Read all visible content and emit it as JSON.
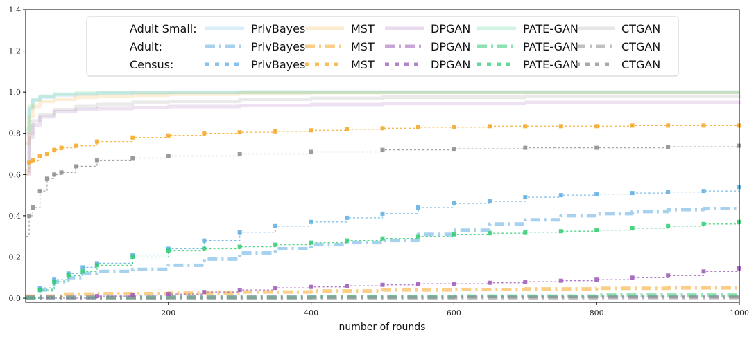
{
  "chart_data": {
    "type": "line",
    "title": "",
    "xlabel": "number of rounds",
    "ylabel": "",
    "xlim": [
      0,
      1000
    ],
    "ylim": [
      -0.02,
      1.4
    ],
    "x_ticks": [
      200,
      400,
      600,
      800,
      1000
    ],
    "y_ticks": [
      0.0,
      0.2,
      0.4,
      0.6,
      0.8,
      1.0,
      1.2,
      1.4
    ],
    "x_tick_labels": [
      "200",
      "400",
      "600",
      "800",
      "1000"
    ],
    "y_tick_labels": [
      "0.0",
      "0.2",
      "0.4",
      "0.6",
      "0.8",
      "1.0",
      "1.2",
      "1.4"
    ],
    "grid": false,
    "legend_position": "top-center",
    "legend_row_labels": [
      "Adult Small:",
      "Adult:",
      "Census:"
    ],
    "method_colors": {
      "PrivBayes": "#5dade2",
      "MST": "#f5a623",
      "DPGAN": "#9b59b6",
      "PATE-GAN": "#2ecc71",
      "CTGAN": "#8c8c8c"
    },
    "series": [
      {
        "dataset": "Adult Small",
        "name": "PrivBayes",
        "style": "solid",
        "x": [
          1,
          5,
          10,
          20,
          40,
          70,
          100,
          150,
          200,
          300,
          400,
          500,
          700,
          1000
        ],
        "values": [
          0.8,
          0.92,
          0.96,
          0.975,
          0.985,
          0.99,
          0.995,
          0.997,
          0.998,
          1.0,
          1.0,
          1.0,
          1.0,
          1.0
        ]
      },
      {
        "dataset": "Adult Small",
        "name": "MST",
        "style": "solid",
        "x": [
          1,
          5,
          10,
          20,
          40,
          70,
          100,
          150,
          200,
          300,
          400,
          500,
          700,
          1000
        ],
        "values": [
          0.75,
          0.88,
          0.93,
          0.955,
          0.965,
          0.975,
          0.98,
          0.985,
          0.99,
          0.995,
          0.997,
          0.998,
          0.999,
          1.0
        ]
      },
      {
        "dataset": "Adult Small",
        "name": "DPGAN",
        "style": "solid",
        "x": [
          1,
          5,
          10,
          20,
          40,
          70,
          100,
          150,
          200,
          300,
          400,
          500,
          700,
          1000
        ],
        "values": [
          0.6,
          0.78,
          0.84,
          0.88,
          0.905,
          0.915,
          0.92,
          0.925,
          0.93,
          0.935,
          0.94,
          0.945,
          0.95,
          0.955
        ]
      },
      {
        "dataset": "Adult Small",
        "name": "PATE-GAN",
        "style": "solid",
        "x": [
          1,
          5,
          10,
          20,
          40,
          70,
          100,
          150,
          200,
          300,
          400,
          500,
          700,
          1000
        ],
        "values": [
          0.82,
          0.93,
          0.965,
          0.98,
          0.99,
          0.995,
          0.997,
          0.999,
          1.0,
          1.0,
          1.0,
          1.0,
          1.0,
          1.0
        ]
      },
      {
        "dataset": "Adult Small",
        "name": "CTGAN",
        "style": "solid",
        "x": [
          1,
          5,
          10,
          20,
          40,
          70,
          100,
          150,
          200,
          300,
          400,
          500,
          700,
          1000
        ],
        "values": [
          0.62,
          0.8,
          0.86,
          0.89,
          0.915,
          0.93,
          0.94,
          0.95,
          0.955,
          0.965,
          0.97,
          0.975,
          0.98,
          0.985
        ]
      },
      {
        "dataset": "Adult",
        "name": "PrivBayes",
        "style": "dashdot",
        "x": [
          0,
          20,
          40,
          60,
          80,
          100,
          150,
          200,
          250,
          300,
          350,
          400,
          450,
          500,
          550,
          600,
          650,
          700,
          750,
          800,
          850,
          900,
          950,
          1000
        ],
        "values": [
          0.0,
          0.04,
          0.08,
          0.1,
          0.12,
          0.13,
          0.14,
          0.16,
          0.19,
          0.22,
          0.24,
          0.26,
          0.27,
          0.28,
          0.31,
          0.33,
          0.36,
          0.38,
          0.4,
          0.41,
          0.42,
          0.43,
          0.435,
          0.44
        ]
      },
      {
        "dataset": "Adult",
        "name": "MST",
        "style": "dashdot",
        "x": [
          0,
          50,
          100,
          200,
          300,
          400,
          500,
          600,
          700,
          800,
          900,
          1000
        ],
        "values": [
          0.01,
          0.02,
          0.022,
          0.025,
          0.03,
          0.035,
          0.04,
          0.042,
          0.045,
          0.048,
          0.05,
          0.052
        ]
      },
      {
        "dataset": "Adult",
        "name": "DPGAN",
        "style": "dashdot",
        "x": [
          0,
          200,
          400,
          600,
          800,
          1000
        ],
        "values": [
          0.005,
          0.006,
          0.007,
          0.008,
          0.008,
          0.009
        ]
      },
      {
        "dataset": "Adult",
        "name": "PATE-GAN",
        "style": "dashdot",
        "x": [
          0,
          200,
          400,
          600,
          800,
          1000
        ],
        "values": [
          0.003,
          0.004,
          0.006,
          0.01,
          0.015,
          0.018
        ]
      },
      {
        "dataset": "Adult",
        "name": "CTGAN",
        "style": "dashdot",
        "x": [
          0,
          200,
          400,
          600,
          800,
          1000
        ],
        "values": [
          0.0,
          0.0,
          0.001,
          0.002,
          0.003,
          0.004
        ]
      },
      {
        "dataset": "Census",
        "name": "PrivBayes",
        "style": "dotted",
        "x": [
          0,
          20,
          40,
          60,
          80,
          100,
          150,
          200,
          250,
          300,
          350,
          400,
          450,
          500,
          550,
          600,
          650,
          700,
          750,
          800,
          850,
          900,
          950,
          1000
        ],
        "values": [
          0.0,
          0.05,
          0.09,
          0.12,
          0.15,
          0.17,
          0.21,
          0.24,
          0.28,
          0.32,
          0.35,
          0.37,
          0.39,
          0.41,
          0.44,
          0.46,
          0.47,
          0.49,
          0.5,
          0.505,
          0.51,
          0.515,
          0.52,
          0.54
        ]
      },
      {
        "dataset": "Census",
        "name": "MST",
        "style": "dotted",
        "x": [
          1,
          5,
          10,
          20,
          30,
          40,
          50,
          70,
          100,
          150,
          200,
          250,
          300,
          350,
          400,
          450,
          500,
          550,
          600,
          650,
          700,
          750,
          800,
          850,
          900,
          950,
          1000
        ],
        "values": [
          0.6,
          0.66,
          0.67,
          0.69,
          0.7,
          0.72,
          0.73,
          0.74,
          0.76,
          0.78,
          0.79,
          0.8,
          0.805,
          0.81,
          0.815,
          0.82,
          0.825,
          0.83,
          0.83,
          0.835,
          0.835,
          0.835,
          0.835,
          0.838,
          0.838,
          0.838,
          0.838
        ]
      },
      {
        "dataset": "Census",
        "name": "DPGAN",
        "style": "dotted",
        "x": [
          0,
          100,
          150,
          200,
          250,
          300,
          350,
          400,
          450,
          500,
          550,
          600,
          650,
          700,
          750,
          800,
          850,
          900,
          950,
          1000
        ],
        "values": [
          0.0,
          0.01,
          0.015,
          0.02,
          0.03,
          0.04,
          0.05,
          0.055,
          0.06,
          0.065,
          0.07,
          0.07,
          0.075,
          0.08,
          0.085,
          0.09,
          0.1,
          0.11,
          0.13,
          0.145
        ]
      },
      {
        "dataset": "Census",
        "name": "PATE-GAN",
        "style": "dotted",
        "x": [
          0,
          20,
          40,
          60,
          80,
          100,
          150,
          200,
          250,
          300,
          350,
          400,
          450,
          500,
          550,
          600,
          650,
          700,
          750,
          800,
          850,
          900,
          950,
          1000
        ],
        "values": [
          0.0,
          0.04,
          0.08,
          0.11,
          0.13,
          0.16,
          0.2,
          0.23,
          0.24,
          0.25,
          0.26,
          0.27,
          0.28,
          0.29,
          0.3,
          0.31,
          0.315,
          0.32,
          0.325,
          0.33,
          0.34,
          0.35,
          0.36,
          0.37
        ]
      },
      {
        "dataset": "Census",
        "name": "CTGAN",
        "style": "dotted",
        "x": [
          1,
          5,
          10,
          20,
          30,
          40,
          50,
          70,
          100,
          150,
          200,
          300,
          400,
          500,
          600,
          700,
          800,
          900,
          1000
        ],
        "values": [
          0.3,
          0.4,
          0.44,
          0.52,
          0.58,
          0.6,
          0.61,
          0.64,
          0.67,
          0.68,
          0.69,
          0.7,
          0.71,
          0.72,
          0.725,
          0.73,
          0.73,
          0.735,
          0.74
        ]
      }
    ]
  }
}
